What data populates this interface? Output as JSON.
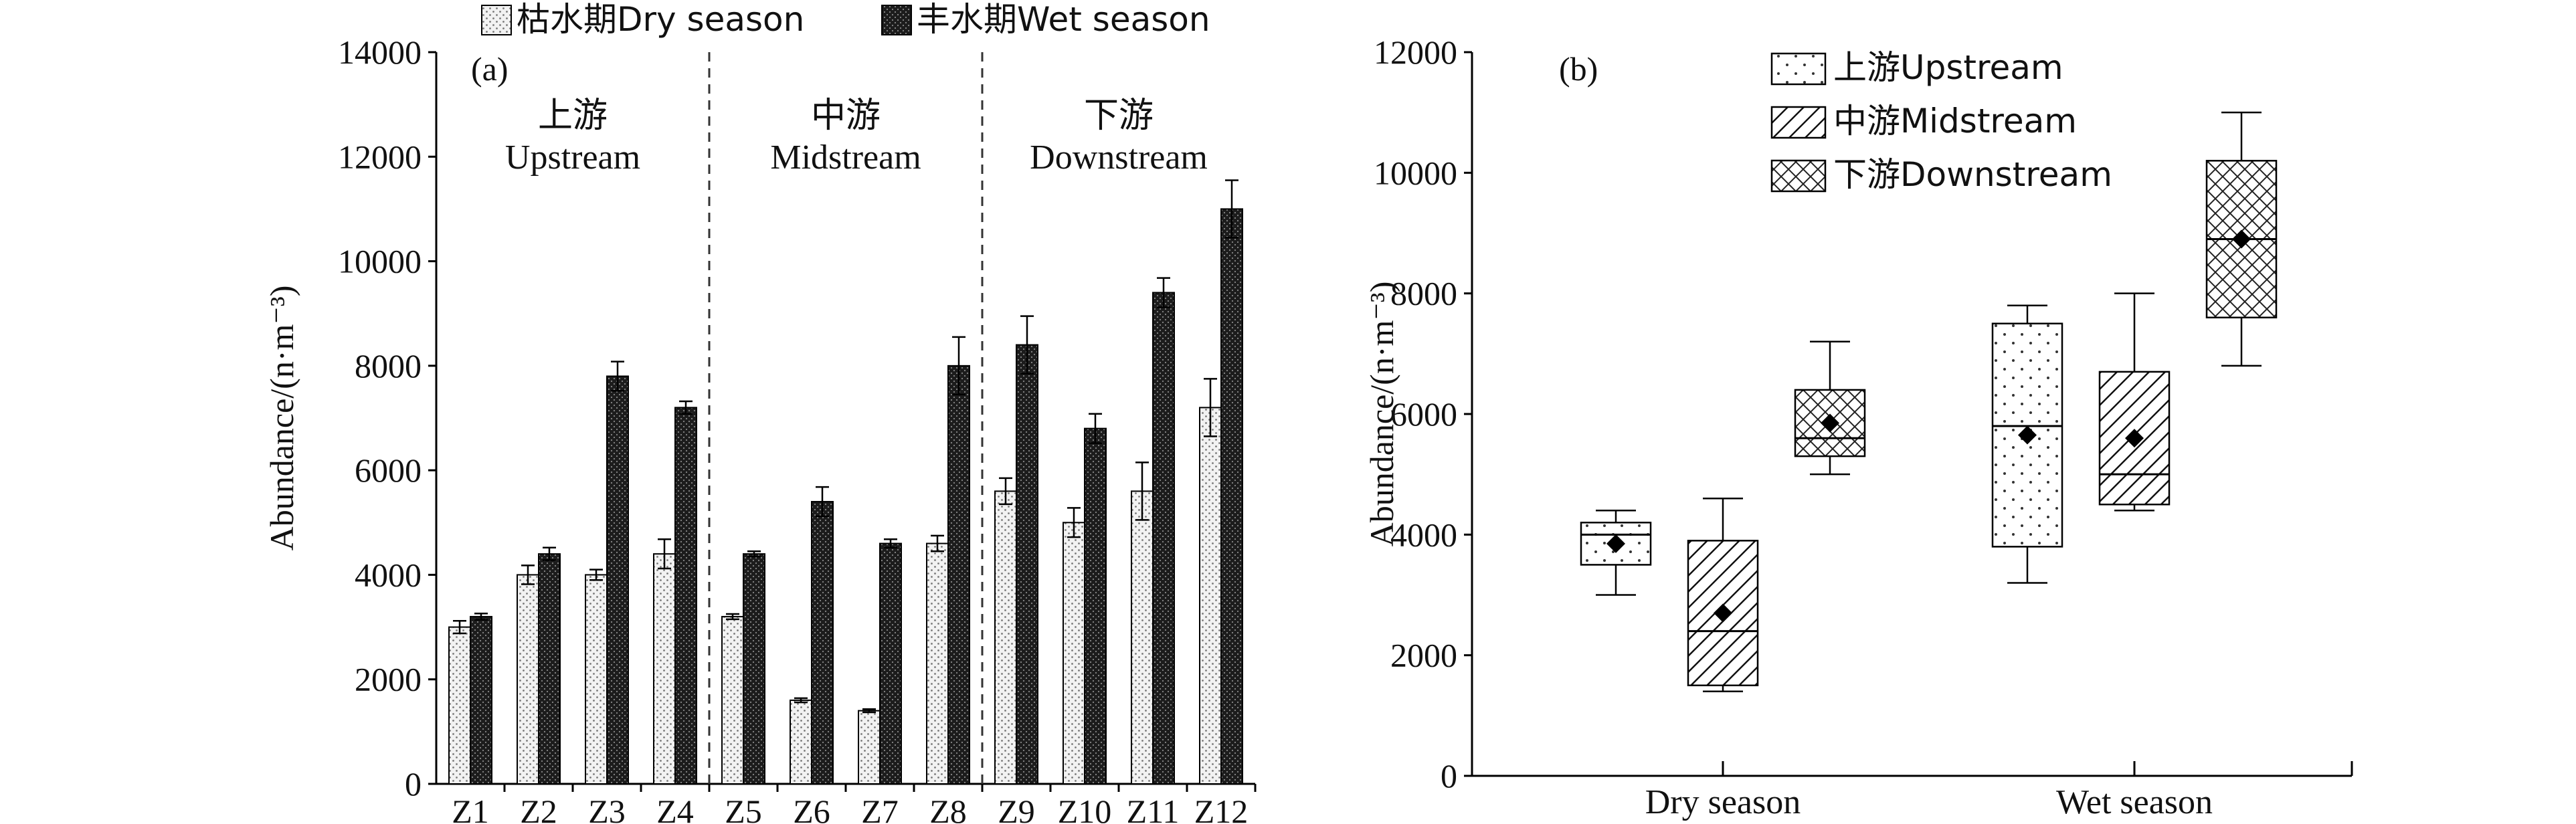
{
  "chart_data": [
    {
      "type": "bar",
      "panel_label": "(a)",
      "ylabel": "Abundance/(n·m⁻³)",
      "ylim": [
        0,
        14000
      ],
      "yticks": [
        0,
        2000,
        4000,
        6000,
        8000,
        10000,
        12000,
        14000
      ],
      "categories": [
        "Z1",
        "Z2",
        "Z3",
        "Z4",
        "Z5",
        "Z6",
        "Z7",
        "Z8",
        "Z9",
        "Z10",
        "Z11",
        "Z12"
      ],
      "series": [
        {
          "name": "枯水期Dry season",
          "values": [
            3000,
            4000,
            4000,
            4400,
            3200,
            1600,
            1400,
            4600,
            5600,
            5000,
            5600,
            7200
          ],
          "errors": [
            120,
            180,
            100,
            280,
            50,
            40,
            30,
            150,
            250,
            280,
            550,
            550
          ],
          "color": "#e6e6e6"
        },
        {
          "name": "丰水期Wet season",
          "values": [
            3200,
            4400,
            7800,
            7200,
            4400,
            5400,
            4600,
            8000,
            8400,
            6800,
            9400,
            11000
          ],
          "errors": [
            60,
            120,
            280,
            120,
            50,
            280,
            80,
            550,
            550,
            280,
            280,
            550
          ],
          "color": "#2a2a2a"
        }
      ],
      "groups": [
        {
          "zh": "上游",
          "en": "Upstream"
        },
        {
          "zh": "中游",
          "en": "Midstream"
        },
        {
          "zh": "下游",
          "en": "Downstream"
        }
      ]
    },
    {
      "type": "box",
      "panel_label": "(b)",
      "ylabel": "Abundance/(n·m⁻³)",
      "ylim": [
        0,
        12000
      ],
      "yticks": [
        0,
        2000,
        4000,
        6000,
        8000,
        10000,
        12000
      ],
      "categories": [
        "Dry season",
        "Wet season"
      ],
      "series": [
        {
          "name": "上游Upstream",
          "pattern": "dots",
          "boxes": [
            {
              "min": 3000,
              "q1": 3500,
              "median": 4000,
              "q3": 4200,
              "max": 4400,
              "mean": 3850
            },
            {
              "min": 3200,
              "q1": 3800,
              "median": 5800,
              "q3": 7500,
              "max": 7800,
              "mean": 5650
            }
          ]
        },
        {
          "name": "中游Midstream",
          "pattern": "diag",
          "boxes": [
            {
              "min": 1400,
              "q1": 1500,
              "median": 2400,
              "q3": 3900,
              "max": 4600,
              "mean": 2700
            },
            {
              "min": 4400,
              "q1": 4500,
              "median": 5000,
              "q3": 6700,
              "max": 8000,
              "mean": 5600
            }
          ]
        },
        {
          "name": "下游Downstream",
          "pattern": "cross",
          "boxes": [
            {
              "min": 5000,
              "q1": 5300,
              "median": 5600,
              "q3": 6400,
              "max": 7200,
              "mean": 5850
            },
            {
              "min": 6800,
              "q1": 7600,
              "median": 8900,
              "q3": 10200,
              "max": 11000,
              "mean": 8900
            }
          ]
        }
      ]
    }
  ]
}
